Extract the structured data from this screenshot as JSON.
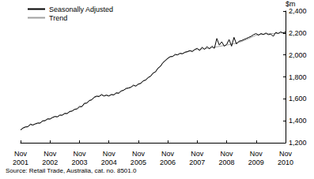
{
  "chart_data": {
    "type": "line",
    "source": "Source: Retail Trade, Australia, cat. no. 8501.0",
    "y_label": "$m",
    "categories": [
      "Nov 2001",
      null,
      null,
      null,
      null,
      null,
      null,
      null,
      null,
      null,
      null,
      null,
      "Nov 2002",
      null,
      null,
      null,
      null,
      null,
      null,
      null,
      null,
      null,
      null,
      null,
      "Nov 2003",
      null,
      null,
      null,
      null,
      null,
      null,
      null,
      null,
      null,
      null,
      null,
      "Nov 2004",
      null,
      null,
      null,
      null,
      null,
      null,
      null,
      null,
      null,
      null,
      null,
      "Nov 2005",
      null,
      null,
      null,
      null,
      null,
      null,
      null,
      null,
      null,
      null,
      null,
      "Nov 2006",
      null,
      null,
      null,
      null,
      null,
      null,
      null,
      null,
      null,
      null,
      null,
      "Nov 2007",
      null,
      null,
      null,
      null,
      null,
      null,
      null,
      null,
      null,
      null,
      null,
      "Nov 2008",
      null,
      null,
      null,
      null,
      null,
      null,
      null,
      null,
      null,
      null,
      null,
      "Nov 2009",
      null,
      null,
      null,
      null,
      null,
      null,
      null,
      null,
      null,
      null,
      null,
      "Nov 2010"
    ],
    "series": [
      {
        "name": "Seasonally Adjusted",
        "color": "#000000",
        "values": [
          1315,
          1335,
          1345,
          1345,
          1370,
          1360,
          1372,
          1380,
          1378,
          1400,
          1400,
          1418,
          1415,
          1430,
          1440,
          1435,
          1452,
          1450,
          1468,
          1465,
          1485,
          1488,
          1505,
          1508,
          1530,
          1528,
          1560,
          1560,
          1585,
          1590,
          1615,
          1625,
          1620,
          1640,
          1625,
          1635,
          1625,
          1640,
          1635,
          1655,
          1650,
          1672,
          1678,
          1695,
          1698,
          1705,
          1725,
          1715,
          1735,
          1740,
          1765,
          1770,
          1795,
          1805,
          1835,
          1845,
          1880,
          1895,
          1930,
          1950,
          1970,
          1985,
          1985,
          2005,
          2000,
          2015,
          2010,
          2025,
          2030,
          2040,
          2030,
          2050,
          2060,
          2040,
          2070,
          2050,
          2075,
          2055,
          2080,
          2060,
          2150,
          2090,
          2120,
          2080,
          2095,
          2140,
          2080,
          2160,
          2100,
          2125,
          2130,
          2140,
          2150,
          2160,
          2170,
          2185,
          2195,
          2180,
          2195,
          2185,
          2200,
          2185,
          2190,
          2170,
          2205,
          2195,
          2210,
          2200,
          2210
        ]
      },
      {
        "name": "Trend",
        "color": "#a0a0a0",
        "values": [
          1320,
          1330,
          1340,
          1350,
          1360,
          1365,
          1370,
          1375,
          1385,
          1395,
          1405,
          1412,
          1420,
          1428,
          1435,
          1440,
          1448,
          1455,
          1462,
          1470,
          1480,
          1490,
          1500,
          1510,
          1520,
          1535,
          1550,
          1565,
          1580,
          1595,
          1610,
          1620,
          1628,
          1632,
          1630,
          1628,
          1630,
          1635,
          1640,
          1648,
          1658,
          1668,
          1680,
          1690,
          1700,
          1710,
          1718,
          1722,
          1730,
          1745,
          1760,
          1775,
          1790,
          1810,
          1830,
          1850,
          1875,
          1900,
          1925,
          1945,
          1965,
          1980,
          1990,
          1998,
          2005,
          2010,
          2015,
          2020,
          2028,
          2035,
          2040,
          2045,
          2050,
          2052,
          2055,
          2058,
          2060,
          2063,
          2066,
          2070,
          2074,
          2078,
          2082,
          2086,
          2090,
          2094,
          2098,
          2102,
          2108,
          2115,
          2122,
          2130,
          2140,
          2150,
          2160,
          2170,
          2180,
          2185,
          2188,
          2190,
          2192,
          2193,
          2194,
          2195,
          2196,
          2198,
          2200,
          2202,
          2205
        ]
      }
    ],
    "ylim": [
      1200,
      2400
    ],
    "yticks": [
      1200,
      1400,
      1600,
      1800,
      2000,
      2200,
      2400
    ],
    "grid": false,
    "legend": "top-left"
  }
}
